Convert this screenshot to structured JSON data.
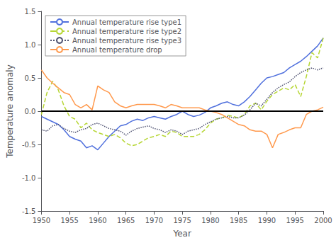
{
  "chart_data": {
    "type": "line",
    "xlabel": "Year",
    "ylabel": "Temperature anomaly",
    "x": [
      1950,
      1951,
      1952,
      1953,
      1954,
      1955,
      1956,
      1957,
      1958,
      1959,
      1960,
      1961,
      1962,
      1963,
      1964,
      1965,
      1966,
      1967,
      1968,
      1969,
      1970,
      1971,
      1972,
      1973,
      1974,
      1975,
      1976,
      1977,
      1978,
      1979,
      1980,
      1981,
      1982,
      1983,
      1984,
      1985,
      1986,
      1987,
      1988,
      1989,
      1990,
      1991,
      1992,
      1993,
      1994,
      1995,
      1996,
      1997,
      1998,
      1999,
      2000
    ],
    "series": [
      {
        "name": "Annual temperature rise type1",
        "line_style": "solid",
        "values": [
          -0.08,
          -0.12,
          -0.16,
          -0.2,
          -0.28,
          -0.38,
          -0.42,
          -0.45,
          -0.55,
          -0.52,
          -0.58,
          -0.48,
          -0.38,
          -0.3,
          -0.22,
          -0.2,
          -0.15,
          -0.12,
          -0.14,
          -0.1,
          -0.08,
          -0.1,
          -0.12,
          -0.08,
          -0.05,
          0.0,
          -0.05,
          -0.08,
          -0.06,
          -0.02,
          0.05,
          0.08,
          0.12,
          0.14,
          0.1,
          0.08,
          0.14,
          0.22,
          0.32,
          0.42,
          0.5,
          0.52,
          0.55,
          0.58,
          0.65,
          0.7,
          0.75,
          0.82,
          0.9,
          0.98,
          1.1
        ]
      },
      {
        "name": "Annual temperature rise type2",
        "line_style": "dashed",
        "values": [
          -0.05,
          0.28,
          0.45,
          0.32,
          0.08,
          -0.08,
          -0.12,
          -0.25,
          -0.18,
          -0.28,
          -0.32,
          -0.35,
          -0.38,
          -0.35,
          -0.4,
          -0.48,
          -0.52,
          -0.5,
          -0.45,
          -0.4,
          -0.38,
          -0.35,
          -0.38,
          -0.3,
          -0.32,
          -0.38,
          -0.38,
          -0.38,
          -0.35,
          -0.28,
          -0.18,
          -0.12,
          -0.1,
          -0.06,
          -0.08,
          -0.1,
          -0.05,
          0.08,
          0.12,
          0.02,
          0.15,
          0.25,
          0.3,
          0.35,
          0.32,
          0.4,
          0.22,
          0.52,
          0.88,
          0.8,
          1.1
        ]
      },
      {
        "name": "Annual temperature rise type3",
        "line_style": "dotted",
        "values": [
          -0.28,
          -0.3,
          -0.22,
          -0.2,
          -0.26,
          -0.3,
          -0.32,
          -0.28,
          -0.26,
          -0.2,
          -0.18,
          -0.22,
          -0.26,
          -0.28,
          -0.3,
          -0.36,
          -0.3,
          -0.26,
          -0.24,
          -0.22,
          -0.26,
          -0.28,
          -0.32,
          -0.28,
          -0.3,
          -0.35,
          -0.3,
          -0.28,
          -0.26,
          -0.2,
          -0.16,
          -0.12,
          -0.1,
          -0.08,
          -0.1,
          -0.1,
          -0.06,
          0.02,
          0.12,
          0.08,
          0.18,
          0.28,
          0.35,
          0.4,
          0.44,
          0.52,
          0.58,
          0.62,
          0.65,
          0.62,
          0.65
        ]
      },
      {
        "name": "Annual temperature drop",
        "line_style": "solid",
        "values": [
          0.62,
          0.5,
          0.42,
          0.35,
          0.28,
          0.25,
          0.1,
          0.05,
          0.1,
          0.02,
          0.38,
          0.32,
          0.28,
          0.14,
          0.08,
          0.05,
          0.08,
          0.1,
          0.1,
          0.1,
          0.1,
          0.08,
          0.05,
          0.1,
          0.08,
          0.05,
          0.05,
          0.05,
          0.05,
          0.02,
          0.0,
          -0.02,
          -0.05,
          -0.1,
          -0.15,
          -0.2,
          -0.22,
          -0.28,
          -0.3,
          -0.3,
          -0.35,
          -0.55,
          -0.35,
          -0.32,
          -0.28,
          -0.25,
          -0.25,
          -0.05,
          0.0,
          0.02,
          0.06
        ]
      }
    ],
    "hline": 0,
    "xlim": [
      1950,
      2000
    ],
    "xticks": [
      1950,
      1955,
      1960,
      1965,
      1970,
      1975,
      1980,
      1985,
      1990,
      1995,
      2000
    ],
    "ylim": [
      -1.5,
      1.5
    ],
    "yticks": [
      -1.5,
      {
        "value": -1.0,
        "label": "-1.0"
      },
      -0.5,
      {
        "value": 0.0,
        "label": "0.0"
      },
      0.5,
      {
        "value": 1.0,
        "label": "1.0"
      },
      1.5
    ],
    "grid": false,
    "legend": "upper left"
  }
}
